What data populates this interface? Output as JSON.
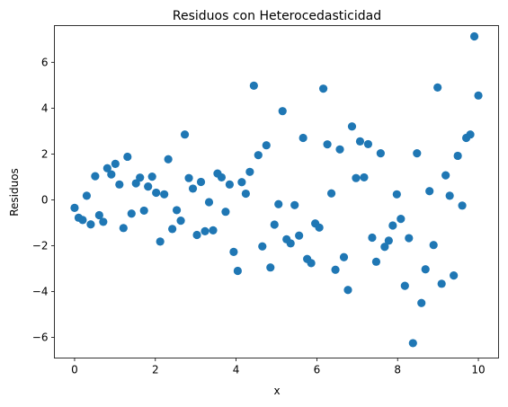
{
  "chart_data": {
    "type": "scatter",
    "title": "Residuos con Heterocedasticidad",
    "xlabel": "x",
    "ylabel": "Residuos",
    "xlim": [
      -0.5,
      10.5
    ],
    "ylim": [
      -6.9,
      7.6
    ],
    "xticks": [
      0,
      2,
      4,
      6,
      8,
      10
    ],
    "yticks": [
      -6,
      -4,
      -2,
      0,
      2,
      4,
      6
    ],
    "grid": false,
    "marker_color": "#1f77b4",
    "points": [
      [
        0.0,
        -0.35
      ],
      [
        0.1,
        -0.78
      ],
      [
        0.2,
        -0.88
      ],
      [
        0.3,
        0.18
      ],
      [
        0.4,
        -1.07
      ],
      [
        0.51,
        1.03
      ],
      [
        0.61,
        -0.67
      ],
      [
        0.71,
        -0.96
      ],
      [
        0.81,
        1.38
      ],
      [
        0.91,
        1.11
      ],
      [
        1.01,
        1.57
      ],
      [
        1.11,
        0.67
      ],
      [
        1.21,
        -1.23
      ],
      [
        1.31,
        1.88
      ],
      [
        1.41,
        -0.6
      ],
      [
        1.52,
        0.72
      ],
      [
        1.62,
        0.97
      ],
      [
        1.72,
        -0.47
      ],
      [
        1.82,
        0.58
      ],
      [
        1.92,
        1.01
      ],
      [
        2.02,
        0.31
      ],
      [
        2.12,
        -1.82
      ],
      [
        2.22,
        0.24
      ],
      [
        2.32,
        1.77
      ],
      [
        2.42,
        -1.27
      ],
      [
        2.53,
        -0.45
      ],
      [
        2.63,
        -0.91
      ],
      [
        2.73,
        2.85
      ],
      [
        2.83,
        0.95
      ],
      [
        2.93,
        0.49
      ],
      [
        3.03,
        -1.53
      ],
      [
        3.13,
        0.78
      ],
      [
        3.23,
        -1.37
      ],
      [
        3.33,
        -0.1
      ],
      [
        3.43,
        -1.33
      ],
      [
        3.54,
        1.15
      ],
      [
        3.64,
        0.98
      ],
      [
        3.74,
        -0.52
      ],
      [
        3.84,
        0.67
      ],
      [
        3.94,
        -2.27
      ],
      [
        4.04,
        -3.1
      ],
      [
        4.14,
        0.77
      ],
      [
        4.24,
        0.27
      ],
      [
        4.34,
        1.22
      ],
      [
        4.44,
        4.98
      ],
      [
        4.55,
        1.95
      ],
      [
        4.65,
        -2.03
      ],
      [
        4.75,
        2.38
      ],
      [
        4.85,
        -2.95
      ],
      [
        4.95,
        -1.08
      ],
      [
        5.05,
        -0.19
      ],
      [
        5.15,
        3.87
      ],
      [
        5.25,
        -1.72
      ],
      [
        5.35,
        -1.9
      ],
      [
        5.45,
        -0.23
      ],
      [
        5.56,
        -1.56
      ],
      [
        5.66,
        2.7
      ],
      [
        5.76,
        -2.58
      ],
      [
        5.86,
        -2.76
      ],
      [
        5.96,
        -1.03
      ],
      [
        6.06,
        -1.21
      ],
      [
        6.16,
        4.85
      ],
      [
        6.26,
        2.42
      ],
      [
        6.36,
        0.28
      ],
      [
        6.46,
        -3.05
      ],
      [
        6.57,
        2.2
      ],
      [
        6.67,
        -2.5
      ],
      [
        6.77,
        -3.93
      ],
      [
        6.87,
        3.2
      ],
      [
        6.97,
        0.95
      ],
      [
        7.07,
        2.55
      ],
      [
        7.17,
        0.98
      ],
      [
        7.27,
        2.43
      ],
      [
        7.37,
        -1.65
      ],
      [
        7.47,
        -2.7
      ],
      [
        7.58,
        2.03
      ],
      [
        7.68,
        -2.05
      ],
      [
        7.78,
        -1.78
      ],
      [
        7.88,
        -1.12
      ],
      [
        7.98,
        0.24
      ],
      [
        8.08,
        -0.83
      ],
      [
        8.18,
        -3.75
      ],
      [
        8.28,
        -1.67
      ],
      [
        8.38,
        -6.25
      ],
      [
        8.48,
        2.03
      ],
      [
        8.59,
        -4.5
      ],
      [
        8.69,
        -3.03
      ],
      [
        8.79,
        0.38
      ],
      [
        8.89,
        -1.97
      ],
      [
        8.99,
        4.9
      ],
      [
        9.09,
        -3.66
      ],
      [
        9.19,
        1.07
      ],
      [
        9.29,
        0.18
      ],
      [
        9.39,
        -3.3
      ],
      [
        9.49,
        1.92
      ],
      [
        9.6,
        -0.25
      ],
      [
        9.7,
        2.7
      ],
      [
        9.8,
        2.85
      ],
      [
        9.9,
        7.13
      ],
      [
        10.0,
        4.55
      ]
    ]
  }
}
